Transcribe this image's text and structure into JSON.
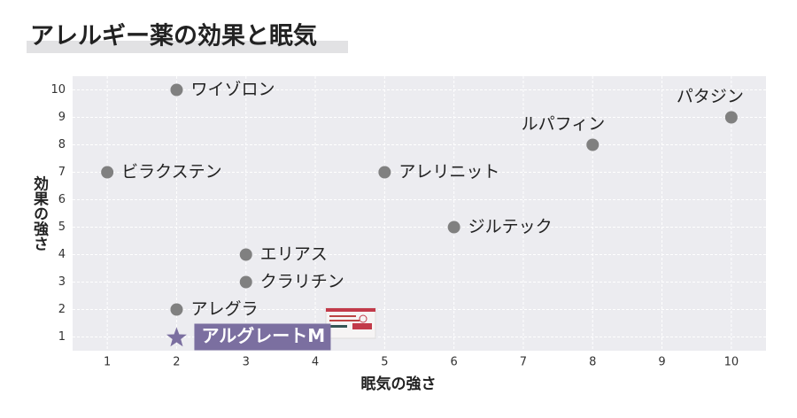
{
  "chart_data": {
    "type": "scatter",
    "title": "アレルギー薬の効果と眠気",
    "x_label": "眠気の強さ",
    "y_label": "効果の強さ",
    "labels": [
      "ワイゾロン",
      "パタジン",
      "ルパフィン",
      "ビラクステン",
      "アレリニット",
      "ジルテック",
      "エリアス",
      "クラリチン",
      "アレグラ"
    ],
    "x": [
      2,
      10,
      8,
      1,
      5,
      6,
      3,
      3,
      2
    ],
    "values": [
      10,
      9,
      8,
      7,
      7,
      5,
      4,
      3,
      2
    ],
    "color": "#808080",
    "highlight": {
      "label": "アルグレートM",
      "x": 2,
      "y": 1,
      "color": "#7b6fa0"
    },
    "xlim": [
      0.5,
      10.5
    ],
    "xticks": [
      1,
      2,
      3,
      4,
      5,
      6,
      7,
      8,
      9,
      10
    ],
    "ylim": [
      0.5,
      10.5
    ],
    "yticks": [
      1,
      2,
      3,
      4,
      5,
      6,
      7,
      8,
      9,
      10
    ],
    "grid": true
  }
}
